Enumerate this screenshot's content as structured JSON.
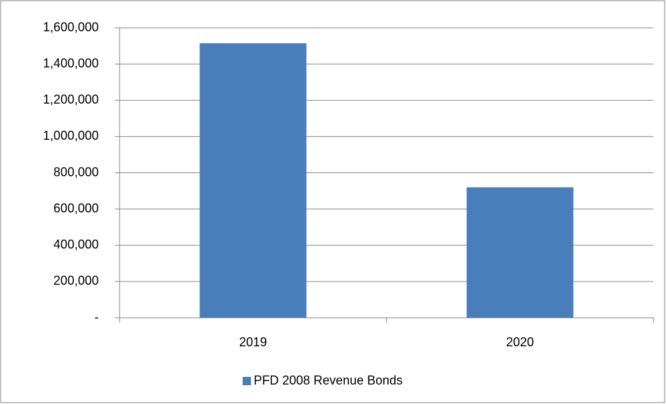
{
  "chart_data": {
    "type": "bar",
    "categories": [
      "2019",
      "2020"
    ],
    "series": [
      {
        "name": "PFD 2008 Revenue Bonds",
        "color": "#4a7ebb",
        "values": [
          1515000,
          720000
        ]
      }
    ],
    "ylim": [
      0,
      1600000
    ],
    "yticks": [
      {
        "value": 0,
        "label": "-"
      },
      {
        "value": 200000,
        "label": "200,000"
      },
      {
        "value": 400000,
        "label": "400,000"
      },
      {
        "value": 600000,
        "label": "600,000"
      },
      {
        "value": 800000,
        "label": "800,000"
      },
      {
        "value": 1000000,
        "label": "1,000,000"
      },
      {
        "value": 1200000,
        "label": "1,200,000"
      },
      {
        "value": 1400000,
        "label": "1,400,000"
      },
      {
        "value": 1600000,
        "label": "1,600,000"
      }
    ],
    "grid": true,
    "legend": "bottom"
  }
}
